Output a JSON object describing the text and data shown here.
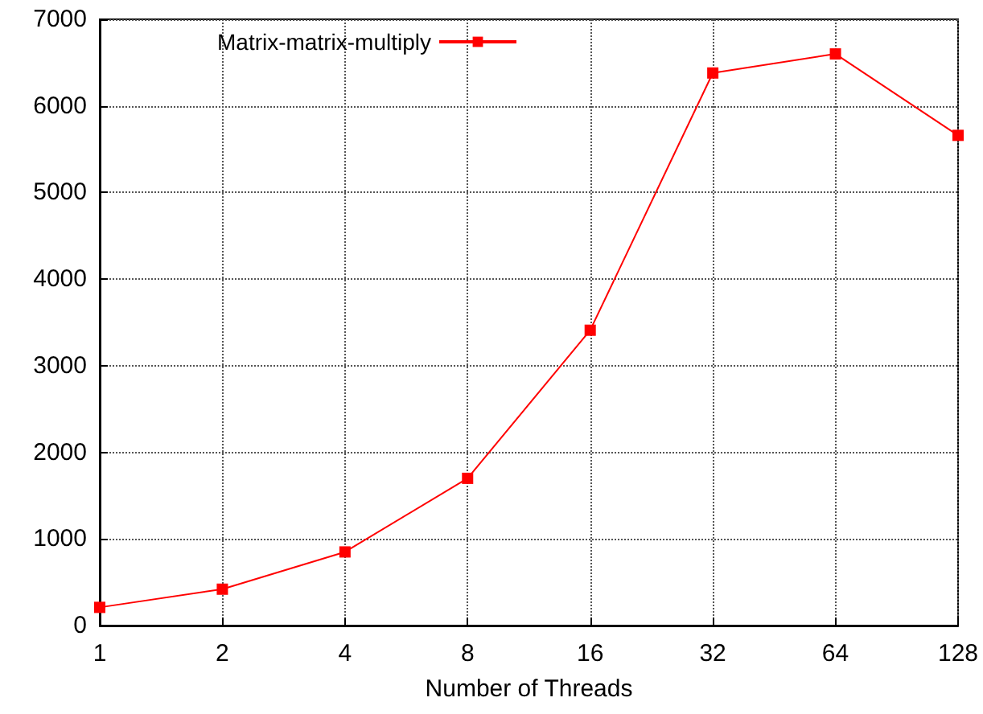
{
  "chart_data": {
    "type": "line",
    "xlabel": "Number of Threads",
    "categories": [
      "1",
      "2",
      "4",
      "8",
      "16",
      "32",
      "64",
      "128"
    ],
    "series": [
      {
        "name": "Matrix-matrix-multiply",
        "color": "#ff0000",
        "values": [
          210,
          420,
          850,
          1700,
          3410,
          6380,
          6600,
          5660
        ]
      }
    ],
    "ylim": [
      0,
      7000
    ],
    "yticks": [
      0,
      1000,
      2000,
      3000,
      4000,
      5000,
      6000,
      7000
    ],
    "grid": true,
    "legend": "top left",
    "marker": "square",
    "line_style": "solid"
  }
}
